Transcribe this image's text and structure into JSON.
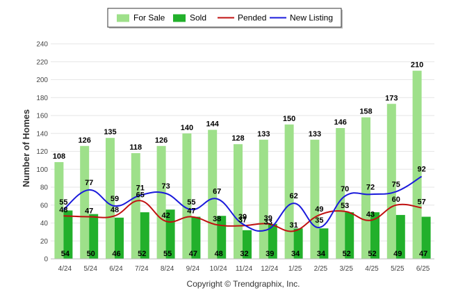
{
  "chart_data": {
    "type": "bar",
    "ylabel": "Number of Homes",
    "ylim": [
      0,
      240
    ],
    "yticks": [
      0,
      20,
      40,
      60,
      80,
      100,
      120,
      140,
      160,
      180,
      200,
      220,
      240
    ],
    "grid": true,
    "legend_position": "top-center",
    "categories": [
      "4/24",
      "5/24",
      "6/24",
      "7/24",
      "8/24",
      "9/24",
      "10/24",
      "11/24",
      "12/24",
      "1/25",
      "2/25",
      "3/25",
      "4/25",
      "5/25",
      "6/25"
    ],
    "series": [
      {
        "name": "For Sale",
        "kind": "bar",
        "color": "#9ee08a",
        "values": [
          108,
          126,
          135,
          118,
          126,
          140,
          144,
          128,
          133,
          150,
          133,
          146,
          158,
          173,
          210
        ]
      },
      {
        "name": "Sold",
        "kind": "bar",
        "color": "#22b02b",
        "values": [
          54,
          50,
          46,
          52,
          55,
          47,
          48,
          32,
          39,
          34,
          34,
          52,
          52,
          49,
          47
        ]
      },
      {
        "name": "Pended",
        "kind": "line",
        "color": "#c01010",
        "values": [
          48,
          47,
          48,
          65,
          42,
          47,
          38,
          37,
          39,
          31,
          49,
          53,
          43,
          60,
          57
        ]
      },
      {
        "name": "New Listing",
        "kind": "line",
        "color": "#1a1adb",
        "values": [
          55,
          77,
          59,
          71,
          73,
          55,
          67,
          39,
          33,
          62,
          35,
          70,
          72,
          75,
          92
        ]
      }
    ]
  },
  "credit": "Copyright © Trendgraphix, Inc."
}
